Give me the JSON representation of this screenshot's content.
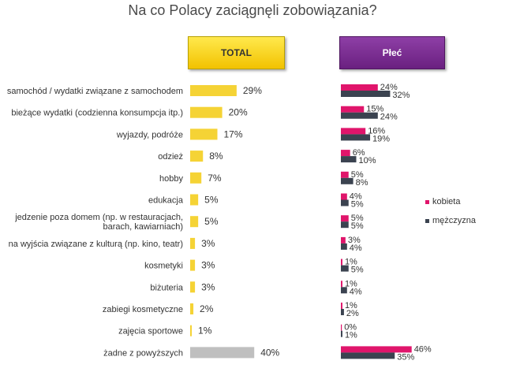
{
  "title": "Na co Polacy zaciągnęli zobowiązania?",
  "headers": {
    "total": "TOTAL",
    "plec": "Płeć"
  },
  "chart_data": [
    {
      "type": "bar",
      "orientation": "horizontal",
      "title": "TOTAL",
      "categories": [
        "samochód / wydatki związane z samochodem",
        "bieżące wydatki (codzienna konsumpcja itp.)",
        "wyjazdy, podróże",
        "odzież",
        "hobby",
        "edukacja",
        "jedzenie poza domem (np. w restauracjach, barach, kawiarniach)",
        "na wyjścia związane z kulturą (np. kino, teatr)",
        "kosmetyki",
        "biżuteria",
        "zabiegi kosmetyczne",
        "zajęcia sportowe",
        "żadne z powyższych"
      ],
      "category_lines": [
        [
          "samochód / wydatki związane z samochodem"
        ],
        [
          "bieżące wydatki (codzienna konsumpcja itp.)"
        ],
        [
          "wyjazdy, podróże"
        ],
        [
          "odzież"
        ],
        [
          "hobby"
        ],
        [
          "edukacja"
        ],
        [
          "jedzenie poza domem (np. w restauracjach,",
          "barach, kawiarniach)"
        ],
        [
          "na wyjścia związane z kulturą (np. kino, teatr)"
        ],
        [
          "kosmetyki"
        ],
        [
          "biżuteria"
        ],
        [
          "zabiegi kosmetyczne"
        ],
        [
          "zajęcia sportowe"
        ],
        [
          "żadne z powyższych"
        ]
      ],
      "values": [
        29,
        20,
        17,
        8,
        7,
        5,
        5,
        3,
        3,
        3,
        2,
        1,
        40
      ],
      "value_suffix": "%",
      "colors": {
        "bar": "#f5d335",
        "last_bar": "#bfbfbf"
      }
    },
    {
      "type": "bar",
      "orientation": "horizontal",
      "title": "Płeć",
      "series": [
        {
          "name": "kobieta",
          "color": "#e0156b",
          "values": [
            24,
            15,
            16,
            6,
            5,
            4,
            5,
            3,
            1,
            1,
            1,
            0,
            46
          ]
        },
        {
          "name": "mężczyzna",
          "color": "#3b4350",
          "values": [
            32,
            24,
            19,
            10,
            8,
            5,
            5,
            4,
            5,
            4,
            2,
            1,
            35
          ]
        }
      ],
      "value_suffix": "%",
      "legend_position": "right"
    }
  ]
}
